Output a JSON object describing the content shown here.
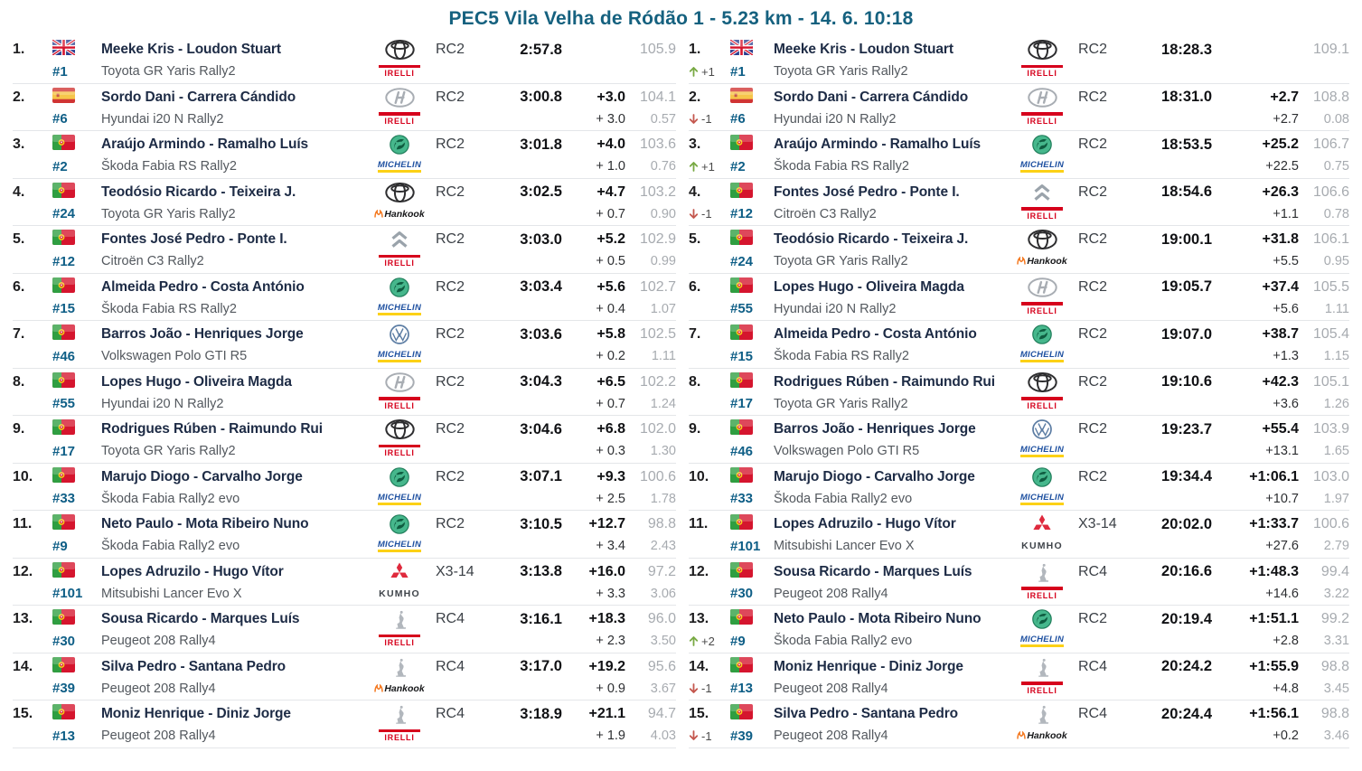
{
  "title": "PEC5 Vila Velha de Ródão 1 - 5.23 km - 14. 6. 10:18",
  "colors": {
    "title": "#15617f",
    "car_number": "#0e5e86",
    "driver_name": "#1d2b45",
    "position_up": "#78a943",
    "position_down": "#c4574e",
    "muted_speed": "#a7abb0",
    "pirelli_red": "#d6001c",
    "michelin_blue": "#1e50a0"
  },
  "stage_results": {
    "rows": [
      {
        "pos": "1.",
        "change_icon": "",
        "change": "",
        "flag": "gb-flag-icon",
        "car_no": "#1",
        "driver": "Meeke Kris - Loudon Stuart",
        "car": "Toyota GR Yaris Rally2",
        "make": "toyota-logo-icon",
        "tyre": "pirelli-logo-icon",
        "class": "RC2",
        "time": "2:57.8",
        "diff1": "",
        "diff2": "",
        "speed": "105.9",
        "coef": ""
      },
      {
        "pos": "2.",
        "change_icon": "",
        "change": "",
        "flag": "es-flag-icon",
        "car_no": "#6",
        "driver": "Sordo Dani - Carrera Cándido",
        "car": "Hyundai i20 N Rally2",
        "make": "hyundai-logo-icon",
        "tyre": "pirelli-logo-icon",
        "class": "RC2",
        "time": "3:00.8",
        "diff1": "+3.0",
        "diff2": "+ 3.0",
        "speed": "104.1",
        "coef": "0.57"
      },
      {
        "pos": "3.",
        "change_icon": "",
        "change": "",
        "flag": "pt-flag-icon",
        "car_no": "#2",
        "driver": "Araújo Armindo - Ramalho Luís",
        "car": "Škoda Fabia RS Rally2",
        "make": "skoda-logo-icon",
        "tyre": "michelin-logo-icon",
        "class": "RC2",
        "time": "3:01.8",
        "diff1": "+4.0",
        "diff2": "+ 1.0",
        "speed": "103.6",
        "coef": "0.76"
      },
      {
        "pos": "4.",
        "change_icon": "",
        "change": "",
        "flag": "pt-flag-icon",
        "car_no": "#24",
        "driver": "Teodósio Ricardo - Teixeira J.",
        "car": "Toyota GR Yaris Rally2",
        "make": "toyota-logo-icon",
        "tyre": "hankook-logo-icon",
        "class": "RC2",
        "time": "3:02.5",
        "diff1": "+4.7",
        "diff2": "+ 0.7",
        "speed": "103.2",
        "coef": "0.90"
      },
      {
        "pos": "5.",
        "change_icon": "",
        "change": "",
        "flag": "pt-flag-icon",
        "car_no": "#12",
        "driver": "Fontes José Pedro - Ponte I.",
        "car": "Citroën C3 Rally2",
        "make": "citroen-logo-icon",
        "tyre": "pirelli-logo-icon",
        "class": "RC2",
        "time": "3:03.0",
        "diff1": "+5.2",
        "diff2": "+ 0.5",
        "speed": "102.9",
        "coef": "0.99"
      },
      {
        "pos": "6.",
        "change_icon": "",
        "change": "",
        "flag": "pt-flag-icon",
        "car_no": "#15",
        "driver": "Almeida Pedro - Costa António",
        "car": "Škoda Fabia RS Rally2",
        "make": "skoda-logo-icon",
        "tyre": "michelin-logo-icon",
        "class": "RC2",
        "time": "3:03.4",
        "diff1": "+5.6",
        "diff2": "+ 0.4",
        "speed": "102.7",
        "coef": "1.07"
      },
      {
        "pos": "7.",
        "change_icon": "",
        "change": "",
        "flag": "pt-flag-icon",
        "car_no": "#46",
        "driver": "Barros João - Henriques Jorge",
        "car": "Volkswagen Polo GTI R5",
        "make": "vw-logo-icon",
        "tyre": "michelin-logo-icon",
        "class": "RC2",
        "time": "3:03.6",
        "diff1": "+5.8",
        "diff2": "+ 0.2",
        "speed": "102.5",
        "coef": "1.11"
      },
      {
        "pos": "8.",
        "change_icon": "",
        "change": "",
        "flag": "pt-flag-icon",
        "car_no": "#55",
        "driver": "Lopes Hugo - Oliveira Magda",
        "car": "Hyundai i20 N Rally2",
        "make": "hyundai-logo-icon",
        "tyre": "pirelli-logo-icon",
        "class": "RC2",
        "time": "3:04.3",
        "diff1": "+6.5",
        "diff2": "+ 0.7",
        "speed": "102.2",
        "coef": "1.24"
      },
      {
        "pos": "9.",
        "change_icon": "",
        "change": "",
        "flag": "pt-flag-icon",
        "car_no": "#17",
        "driver": "Rodrigues Rúben - Raimundo Rui",
        "car": "Toyota GR Yaris Rally2",
        "make": "toyota-logo-icon",
        "tyre": "pirelli-logo-icon",
        "class": "RC2",
        "time": "3:04.6",
        "diff1": "+6.8",
        "diff2": "+ 0.3",
        "speed": "102.0",
        "coef": "1.30"
      },
      {
        "pos": "10.",
        "change_icon": "",
        "change": "",
        "flag": "pt-flag-icon",
        "car_no": "#33",
        "driver": "Marujo Diogo - Carvalho Jorge",
        "car": "Škoda Fabia Rally2 evo",
        "make": "skoda-logo-icon",
        "tyre": "michelin-logo-icon",
        "class": "RC2",
        "time": "3:07.1",
        "diff1": "+9.3",
        "diff2": "+ 2.5",
        "speed": "100.6",
        "coef": "1.78"
      },
      {
        "pos": "11.",
        "change_icon": "",
        "change": "",
        "flag": "pt-flag-icon",
        "car_no": "#9",
        "driver": "Neto Paulo - Mota Ribeiro Nuno",
        "car": "Škoda Fabia Rally2 evo",
        "make": "skoda-logo-icon",
        "tyre": "michelin-logo-icon",
        "class": "RC2",
        "time": "3:10.5",
        "diff1": "+12.7",
        "diff2": "+ 3.4",
        "speed": "98.8",
        "coef": "2.43"
      },
      {
        "pos": "12.",
        "change_icon": "",
        "change": "",
        "flag": "pt-flag-icon",
        "car_no": "#101",
        "driver": "Lopes Adruzilo - Hugo Vítor",
        "car": "Mitsubishi Lancer Evo X",
        "make": "mitsubishi-logo-icon",
        "tyre": "kumho-logo-icon",
        "class": "X3-14",
        "time": "3:13.8",
        "diff1": "+16.0",
        "diff2": "+ 3.3",
        "speed": "97.2",
        "coef": "3.06"
      },
      {
        "pos": "13.",
        "change_icon": "",
        "change": "",
        "flag": "pt-flag-icon",
        "car_no": "#30",
        "driver": "Sousa Ricardo - Marques Luís",
        "car": "Peugeot 208 Rally4",
        "make": "peugeot-logo-icon",
        "tyre": "pirelli-logo-icon",
        "class": "RC4",
        "time": "3:16.1",
        "diff1": "+18.3",
        "diff2": "+ 2.3",
        "speed": "96.0",
        "coef": "3.50"
      },
      {
        "pos": "14.",
        "change_icon": "",
        "change": "",
        "flag": "pt-flag-icon",
        "car_no": "#39",
        "driver": "Silva Pedro - Santana Pedro",
        "car": "Peugeot 208 Rally4",
        "make": "peugeot-logo-icon",
        "tyre": "hankook-logo-icon",
        "class": "RC4",
        "time": "3:17.0",
        "diff1": "+19.2",
        "diff2": "+ 0.9",
        "speed": "95.6",
        "coef": "3.67"
      },
      {
        "pos": "15.",
        "change_icon": "",
        "change": "",
        "flag": "pt-flag-icon",
        "car_no": "#13",
        "driver": "Moniz Henrique - Diniz Jorge",
        "car": "Peugeot 208 Rally4",
        "make": "peugeot-logo-icon",
        "tyre": "pirelli-logo-icon",
        "class": "RC4",
        "time": "3:18.9",
        "diff1": "+21.1",
        "diff2": "+ 1.9",
        "speed": "94.7",
        "coef": "4.03"
      }
    ]
  },
  "overall_results": {
    "rows": [
      {
        "pos": "1.",
        "change_icon": "arrow-up-icon",
        "change": "+1",
        "flag": "gb-flag-icon",
        "car_no": "#1",
        "driver": "Meeke Kris - Loudon Stuart",
        "car": "Toyota GR Yaris Rally2",
        "make": "toyota-logo-icon",
        "tyre": "pirelli-logo-icon",
        "class": "RC2",
        "time": "18:28.3",
        "diff1": "",
        "diff2": "",
        "speed": "109.1",
        "coef": ""
      },
      {
        "pos": "2.",
        "change_icon": "arrow-down-icon",
        "change": "-1",
        "flag": "es-flag-icon",
        "car_no": "#6",
        "driver": "Sordo Dani - Carrera Cándido",
        "car": "Hyundai i20 N Rally2",
        "make": "hyundai-logo-icon",
        "tyre": "pirelli-logo-icon",
        "class": "RC2",
        "time": "18:31.0",
        "diff1": "+2.7",
        "diff2": "+2.7",
        "speed": "108.8",
        "coef": "0.08"
      },
      {
        "pos": "3.",
        "change_icon": "arrow-up-icon",
        "change": "+1",
        "flag": "pt-flag-icon",
        "car_no": "#2",
        "driver": "Araújo Armindo - Ramalho Luís",
        "car": "Škoda Fabia RS Rally2",
        "make": "skoda-logo-icon",
        "tyre": "michelin-logo-icon",
        "class": "RC2",
        "time": "18:53.5",
        "diff1": "+25.2",
        "diff2": "+22.5",
        "speed": "106.7",
        "coef": "0.75"
      },
      {
        "pos": "4.",
        "change_icon": "arrow-down-icon",
        "change": "-1",
        "flag": "pt-flag-icon",
        "car_no": "#12",
        "driver": "Fontes José Pedro - Ponte I.",
        "car": "Citroën C3 Rally2",
        "make": "citroen-logo-icon",
        "tyre": "pirelli-logo-icon",
        "class": "RC2",
        "time": "18:54.6",
        "diff1": "+26.3",
        "diff2": "+1.1",
        "speed": "106.6",
        "coef": "0.78"
      },
      {
        "pos": "5.",
        "change_icon": "",
        "change": "",
        "flag": "pt-flag-icon",
        "car_no": "#24",
        "driver": "Teodósio Ricardo - Teixeira J.",
        "car": "Toyota GR Yaris Rally2",
        "make": "toyota-logo-icon",
        "tyre": "hankook-logo-icon",
        "class": "RC2",
        "time": "19:00.1",
        "diff1": "+31.8",
        "diff2": "+5.5",
        "speed": "106.1",
        "coef": "0.95"
      },
      {
        "pos": "6.",
        "change_icon": "",
        "change": "",
        "flag": "pt-flag-icon",
        "car_no": "#55",
        "driver": "Lopes Hugo - Oliveira Magda",
        "car": "Hyundai i20 N Rally2",
        "make": "hyundai-logo-icon",
        "tyre": "pirelli-logo-icon",
        "class": "RC2",
        "time": "19:05.7",
        "diff1": "+37.4",
        "diff2": "+5.6",
        "speed": "105.5",
        "coef": "1.11"
      },
      {
        "pos": "7.",
        "change_icon": "",
        "change": "",
        "flag": "pt-flag-icon",
        "car_no": "#15",
        "driver": "Almeida Pedro - Costa António",
        "car": "Škoda Fabia RS Rally2",
        "make": "skoda-logo-icon",
        "tyre": "michelin-logo-icon",
        "class": "RC2",
        "time": "19:07.0",
        "diff1": "+38.7",
        "diff2": "+1.3",
        "speed": "105.4",
        "coef": "1.15"
      },
      {
        "pos": "8.",
        "change_icon": "",
        "change": "",
        "flag": "pt-flag-icon",
        "car_no": "#17",
        "driver": "Rodrigues Rúben - Raimundo Rui",
        "car": "Toyota GR Yaris Rally2",
        "make": "toyota-logo-icon",
        "tyre": "pirelli-logo-icon",
        "class": "RC2",
        "time": "19:10.6",
        "diff1": "+42.3",
        "diff2": "+3.6",
        "speed": "105.1",
        "coef": "1.26"
      },
      {
        "pos": "9.",
        "change_icon": "",
        "change": "",
        "flag": "pt-flag-icon",
        "car_no": "#46",
        "driver": "Barros João - Henriques Jorge",
        "car": "Volkswagen Polo GTI R5",
        "make": "vw-logo-icon",
        "tyre": "michelin-logo-icon",
        "class": "RC2",
        "time": "19:23.7",
        "diff1": "+55.4",
        "diff2": "+13.1",
        "speed": "103.9",
        "coef": "1.65"
      },
      {
        "pos": "10.",
        "change_icon": "",
        "change": "",
        "flag": "pt-flag-icon",
        "car_no": "#33",
        "driver": "Marujo Diogo - Carvalho Jorge",
        "car": "Škoda Fabia Rally2 evo",
        "make": "skoda-logo-icon",
        "tyre": "michelin-logo-icon",
        "class": "RC2",
        "time": "19:34.4",
        "diff1": "+1:06.1",
        "diff2": "+10.7",
        "speed": "103.0",
        "coef": "1.97"
      },
      {
        "pos": "11.",
        "change_icon": "",
        "change": "",
        "flag": "pt-flag-icon",
        "car_no": "#101",
        "driver": "Lopes Adruzilo - Hugo Vítor",
        "car": "Mitsubishi Lancer Evo X",
        "make": "mitsubishi-logo-icon",
        "tyre": "kumho-logo-icon",
        "class": "X3-14",
        "time": "20:02.0",
        "diff1": "+1:33.7",
        "diff2": "+27.6",
        "speed": "100.6",
        "coef": "2.79"
      },
      {
        "pos": "12.",
        "change_icon": "",
        "change": "",
        "flag": "pt-flag-icon",
        "car_no": "#30",
        "driver": "Sousa Ricardo - Marques Luís",
        "car": "Peugeot 208 Rally4",
        "make": "peugeot-logo-icon",
        "tyre": "pirelli-logo-icon",
        "class": "RC4",
        "time": "20:16.6",
        "diff1": "+1:48.3",
        "diff2": "+14.6",
        "speed": "99.4",
        "coef": "3.22"
      },
      {
        "pos": "13.",
        "change_icon": "arrow-up-icon",
        "change": "+2",
        "flag": "pt-flag-icon",
        "car_no": "#9",
        "driver": "Neto Paulo - Mota Ribeiro Nuno",
        "car": "Škoda Fabia Rally2 evo",
        "make": "skoda-logo-icon",
        "tyre": "michelin-logo-icon",
        "class": "RC2",
        "time": "20:19.4",
        "diff1": "+1:51.1",
        "diff2": "+2.8",
        "speed": "99.2",
        "coef": "3.31"
      },
      {
        "pos": "14.",
        "change_icon": "arrow-down-icon",
        "change": "-1",
        "flag": "pt-flag-icon",
        "car_no": "#13",
        "driver": "Moniz Henrique - Diniz Jorge",
        "car": "Peugeot 208 Rally4",
        "make": "peugeot-logo-icon",
        "tyre": "pirelli-logo-icon",
        "class": "RC4",
        "time": "20:24.2",
        "diff1": "+1:55.9",
        "diff2": "+4.8",
        "speed": "98.8",
        "coef": "3.45"
      },
      {
        "pos": "15.",
        "change_icon": "arrow-down-icon",
        "change": "-1",
        "flag": "pt-flag-icon",
        "car_no": "#39",
        "driver": "Silva Pedro - Santana Pedro",
        "car": "Peugeot 208 Rally4",
        "make": "peugeot-logo-icon",
        "tyre": "hankook-logo-icon",
        "class": "RC4",
        "time": "20:24.4",
        "diff1": "+1:56.1",
        "diff2": "+0.2",
        "speed": "98.8",
        "coef": "3.46"
      }
    ]
  }
}
